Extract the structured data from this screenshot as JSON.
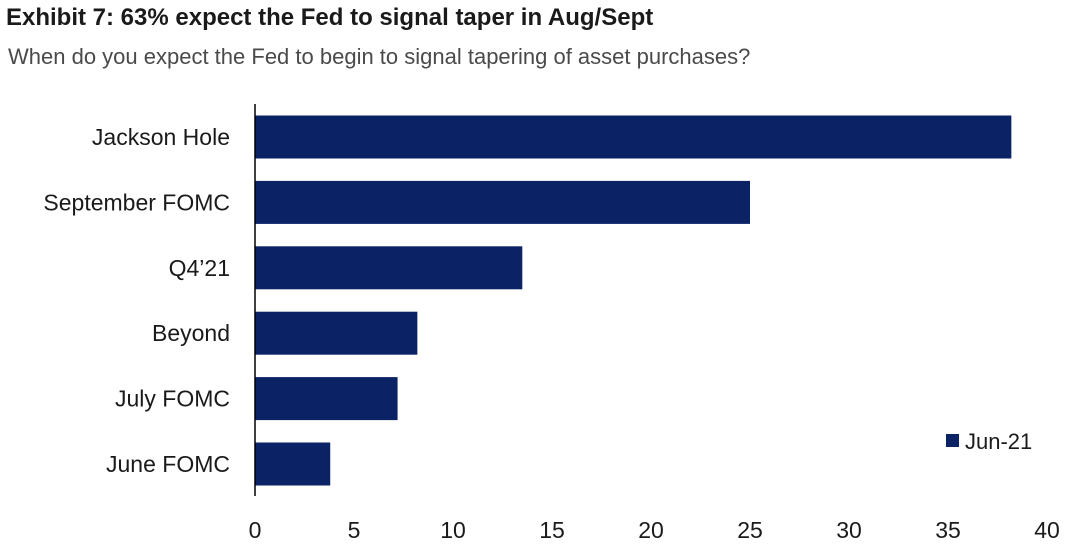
{
  "header": {
    "title": "Exhibit 7: 63% expect the Fed to signal taper in Aug/Sept",
    "subtitle": "When do you expect the Fed to begin to signal tapering of asset purchases?"
  },
  "colors": {
    "bar": "#0b2265",
    "axis": "#000000",
    "text": "#1a1a1a"
  },
  "chart_data": {
    "type": "bar",
    "orientation": "horizontal",
    "categories": [
      "Jackson Hole",
      "September FOMC",
      "Q4’21",
      "Beyond",
      "July FOMC",
      "June FOMC"
    ],
    "series": [
      {
        "name": "Jun-21",
        "values": [
          38.2,
          25,
          13.5,
          8.2,
          7.2,
          3.8
        ]
      }
    ],
    "xlim": [
      0,
      40
    ],
    "xticks": [
      0,
      5,
      10,
      15,
      20,
      25,
      30,
      35,
      40
    ],
    "grid": false,
    "legend_position": "bottom-right"
  }
}
